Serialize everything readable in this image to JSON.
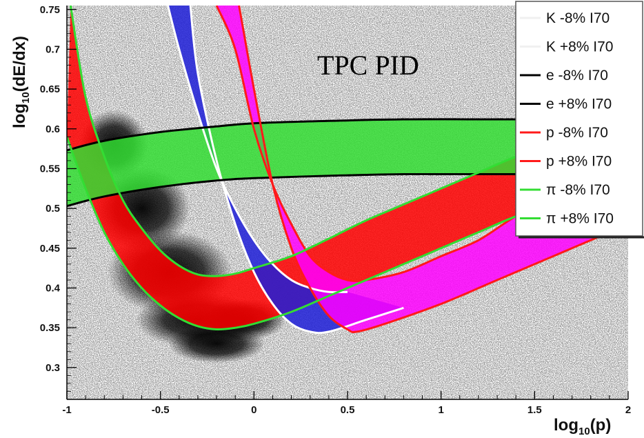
{
  "chart_data": {
    "type": "scatter",
    "title": "",
    "annotation": "TPC PID",
    "xlabel_main": "log",
    "xlabel_sub": "10",
    "xlabel_tail": "(p)",
    "ylabel_main": "log",
    "ylabel_sub": "10",
    "ylabel_tail": "(dE/dx)",
    "xlim": [
      -1,
      2
    ],
    "ylim": [
      0.26,
      0.755
    ],
    "x_ticks": [
      "-1",
      "-0.5",
      "0",
      "0.5",
      "1",
      "1.5",
      "2"
    ],
    "x_tick_values": [
      -1,
      -0.5,
      0,
      0.5,
      1,
      1.5,
      2
    ],
    "y_ticks": [
      "0.3",
      "0.35",
      "0.4",
      "0.45",
      "0.5",
      "0.55",
      "0.6",
      "0.65",
      "0.7",
      "0.75"
    ],
    "y_tick_values": [
      0.3,
      0.35,
      0.4,
      0.45,
      0.5,
      0.55,
      0.6,
      0.65,
      0.7,
      0.75
    ],
    "legend_position": "top-right",
    "bands": [
      {
        "name": "pion band",
        "color": "#ff0000",
        "upper": "pi-minus",
        "lower": "pi-plus"
      },
      {
        "name": "kaon band",
        "color": "#1f1fd8",
        "upper": "K-minus",
        "lower": "K-plus"
      },
      {
        "name": "proton band",
        "color": "#ff00ff",
        "upper": "p-minus",
        "lower": "p-plus"
      },
      {
        "name": "electron band",
        "color": "#33dd33",
        "upper": "e-minus",
        "lower": "e-plus"
      }
    ],
    "series": [
      {
        "id": "K-minus",
        "label": "K -8%  I70",
        "color": "#ffffff",
        "x": [
          -0.46,
          -0.4,
          -0.3,
          -0.2,
          -0.1,
          0.0,
          0.1,
          0.2,
          0.3,
          0.4,
          0.5
        ],
        "y": [
          0.755,
          0.7,
          0.62,
          0.55,
          0.5,
          0.46,
          0.43,
          0.41,
          0.4,
          0.395,
          0.395
        ]
      },
      {
        "id": "K-plus",
        "label": "K +8%  I70",
        "color": "#ffffff",
        "x": [
          -0.34,
          -0.3,
          -0.2,
          -0.1,
          0.0,
          0.1,
          0.2,
          0.3,
          0.4,
          0.6,
          0.8
        ],
        "y": [
          0.755,
          0.67,
          0.56,
          0.48,
          0.42,
          0.38,
          0.355,
          0.345,
          0.345,
          0.36,
          0.375
        ]
      },
      {
        "id": "e-minus",
        "label": "e -8%  I70",
        "color": "#000000",
        "x": [
          -1,
          -0.8,
          -0.5,
          -0.2,
          0.0,
          0.4,
          0.8,
          1.2,
          1.6,
          2.0
        ],
        "y": [
          0.573,
          0.585,
          0.596,
          0.603,
          0.607,
          0.61,
          0.612,
          0.612,
          0.612,
          0.612
        ]
      },
      {
        "id": "e-plus",
        "label": "e +8%  I70",
        "color": "#000000",
        "x": [
          -1,
          -0.8,
          -0.5,
          -0.2,
          0.0,
          0.4,
          0.8,
          1.2,
          1.6,
          2.0
        ],
        "y": [
          0.503,
          0.515,
          0.527,
          0.535,
          0.538,
          0.541,
          0.543,
          0.543,
          0.543,
          0.543
        ]
      },
      {
        "id": "p-minus",
        "label": "p -8%  I70",
        "color": "#ff1a1a",
        "x": [
          -0.2,
          -0.1,
          0.0,
          0.1,
          0.2,
          0.3,
          0.4,
          0.5,
          0.6,
          0.8,
          1.0,
          1.2,
          1.4,
          1.6
        ],
        "y": [
          0.755,
          0.7,
          0.6,
          0.53,
          0.48,
          0.44,
          0.42,
          0.41,
          0.41,
          0.42,
          0.44,
          0.46,
          0.49,
          0.51
        ]
      },
      {
        "id": "p-plus",
        "label": "p +8%  I70",
        "color": "#ff1a1a",
        "x": [
          -0.08,
          0.0,
          0.1,
          0.2,
          0.3,
          0.4,
          0.5,
          0.55,
          0.7,
          1.0,
          1.3,
          1.6,
          1.9
        ],
        "y": [
          0.755,
          0.65,
          0.53,
          0.45,
          0.4,
          0.365,
          0.348,
          0.345,
          0.355,
          0.38,
          0.41,
          0.44,
          0.47
        ]
      },
      {
        "id": "pi-minus",
        "label": "π -8%  I70",
        "color": "#33dd33",
        "x": [
          -0.98,
          -0.9,
          -0.8,
          -0.7,
          -0.6,
          -0.5,
          -0.4,
          -0.3,
          -0.2,
          -0.1,
          0.0,
          0.2,
          0.4,
          0.6,
          0.8,
          1.0,
          1.2,
          1.4,
          1.6
        ],
        "y": [
          0.755,
          0.64,
          0.565,
          0.51,
          0.475,
          0.447,
          0.428,
          0.417,
          0.415,
          0.418,
          0.425,
          0.44,
          0.462,
          0.485,
          0.505,
          0.525,
          0.545,
          0.565,
          0.58
        ]
      },
      {
        "id": "pi-plus",
        "label": "π +8%  I70",
        "color": "#33dd33",
        "x": [
          -1.0,
          -0.9,
          -0.8,
          -0.7,
          -0.6,
          -0.5,
          -0.4,
          -0.3,
          -0.2,
          -0.1,
          0.0,
          0.2,
          0.4,
          0.6,
          0.8,
          1.0,
          1.2,
          1.4,
          1.6
        ],
        "y": [
          0.59,
          0.525,
          0.47,
          0.43,
          0.4,
          0.378,
          0.362,
          0.352,
          0.348,
          0.35,
          0.355,
          0.37,
          0.39,
          0.41,
          0.43,
          0.45,
          0.47,
          0.49,
          0.505
        ]
      }
    ]
  }
}
